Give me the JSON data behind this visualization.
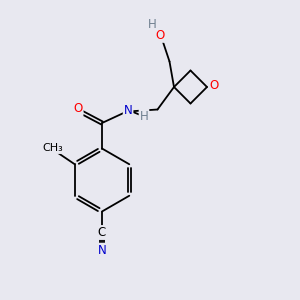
{
  "background_color": "#e8e8f0",
  "bond_color": "#000000",
  "atom_colors": {
    "O": "#ff0000",
    "N": "#0000cc",
    "C": "#000000",
    "H": "#708090"
  },
  "font_size": 8.5
}
